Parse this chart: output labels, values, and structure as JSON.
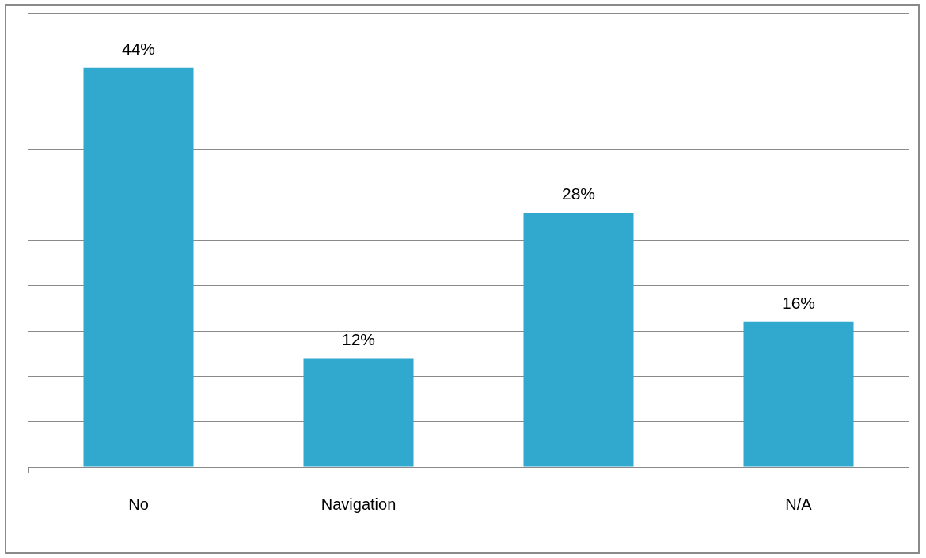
{
  "chart_data": {
    "type": "bar",
    "categories": [
      "No",
      "Navigation",
      null,
      "N/A"
    ],
    "values": [
      44,
      12,
      28,
      16
    ],
    "value_labels": [
      "44%",
      "12%",
      "28%",
      "16%"
    ],
    "color": "#31a9cf",
    "ylim": [
      0,
      50
    ],
    "yticks": [
      {
        "value": 0,
        "label": null
      },
      {
        "value": 5,
        "label": null
      },
      {
        "value": 10,
        "label": null
      },
      {
        "value": 15,
        "label": null
      },
      {
        "value": 20,
        "label": null
      },
      {
        "value": 25,
        "label": null
      },
      {
        "value": 30,
        "label": null
      },
      {
        "value": 35,
        "label": null
      },
      {
        "value": 40,
        "label": null
      },
      {
        "value": 45,
        "label": null
      },
      {
        "value": 50,
        "label": null
      }
    ],
    "grid": "y",
    "tick_labels": "x",
    "legend": false
  }
}
